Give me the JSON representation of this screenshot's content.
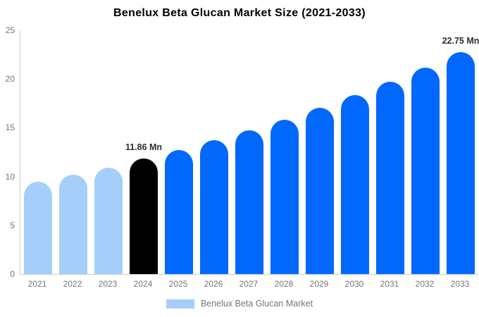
{
  "chart_data": {
    "type": "bar",
    "title": "Benelux Beta Glucan Market Size (2021-2033)",
    "categories": [
      "2021",
      "2022",
      "2023",
      "2024",
      "2025",
      "2026",
      "2027",
      "2028",
      "2029",
      "2030",
      "2031",
      "2032",
      "2033"
    ],
    "values": [
      9.45,
      10.17,
      10.9,
      11.86,
      12.75,
      13.71,
      14.74,
      15.85,
      17.04,
      18.32,
      19.7,
      21.18,
      22.75
    ],
    "bar_colors": [
      "#A6CEFA",
      "#A6CEFA",
      "#A6CEFA",
      "#000000",
      "#0268FC",
      "#0268FC",
      "#0268FC",
      "#0268FC",
      "#0268FC",
      "#0268FC",
      "#0268FC",
      "#0268FC",
      "#0268FC"
    ],
    "annotations": [
      {
        "index": 3,
        "text": "11.86 Mn"
      },
      {
        "index": 12,
        "text": "22.75 Mn"
      }
    ],
    "xlabel": "",
    "ylabel": "",
    "ylim": [
      0,
      25
    ],
    "yticks": [
      0,
      5,
      10,
      15,
      20,
      25
    ],
    "grid": false,
    "legend": {
      "label": "Benelux Beta Glucan Market",
      "swatch_color": "#A6CEFA",
      "position": "bottom"
    },
    "colors": {
      "historical": "#A6CEFA",
      "highlight_2024": "#000000",
      "forecast": "#0268FC",
      "axis_line": "#CCCCCC",
      "tick_text": "#757575",
      "annotation_text": "#2D2D2D",
      "title_text": "#000000"
    }
  }
}
